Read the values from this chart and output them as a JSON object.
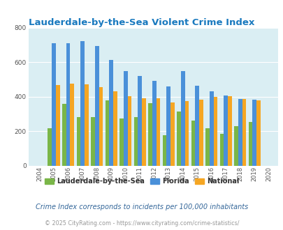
{
  "title": "Lauderdale-by-the-Sea Violent Crime Index",
  "years": [
    2004,
    2005,
    2006,
    2007,
    2008,
    2009,
    2010,
    2011,
    2012,
    2013,
    2014,
    2015,
    2016,
    2017,
    2018,
    2019,
    2020
  ],
  "city": [
    0,
    215,
    360,
    283,
    280,
    378,
    273,
    283,
    363,
    177,
    315,
    263,
    218,
    185,
    228,
    253,
    0
  ],
  "florida": [
    0,
    710,
    710,
    722,
    692,
    612,
    547,
    520,
    493,
    460,
    547,
    464,
    430,
    405,
    388,
    383,
    0
  ],
  "national": [
    0,
    469,
    477,
    470,
    453,
    429,
    403,
    389,
    390,
    368,
    376,
    384,
    399,
    401,
    388,
    379,
    0
  ],
  "city_color": "#7ab648",
  "florida_color": "#4a90d9",
  "national_color": "#f5a623",
  "bg_color": "#daeef3",
  "ylim": [
    0,
    800
  ],
  "yticks": [
    0,
    200,
    400,
    600,
    800
  ],
  "title_color": "#1a7abf",
  "legend_city": "Lauderdale-by-the-Sea",
  "legend_florida": "Florida",
  "legend_national": "National",
  "footnote1": "Crime Index corresponds to incidents per 100,000 inhabitants",
  "footnote2": "© 2025 CityRating.com - https://www.cityrating.com/crime-statistics/",
  "footnote1_color": "#336699",
  "footnote2_color": "#999999"
}
